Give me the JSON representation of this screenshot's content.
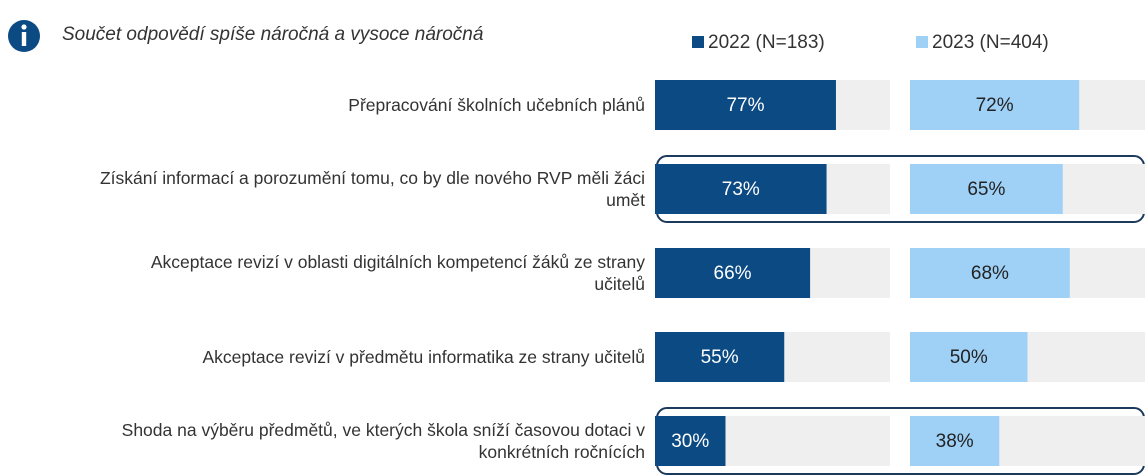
{
  "chart_data": {
    "type": "bar",
    "orientation": "horizontal",
    "title": "Součet odpovědí  spíše náročná  a vysoce náročná",
    "categories": [
      "Přepracování školních učebních plánů",
      "Získání informací a porozumění tomu, co by dle nového RVP měli žáci umět",
      "Akceptace revizí v oblasti digitálních kompetencí žáků ze strany učitelů",
      "Akceptace revizí v předmětu informatika ze strany učitelů",
      "Shoda na výběru předmětů, ve kterých škola sníží časovou dotaci v konkrétních ročnících"
    ],
    "series": [
      {
        "name": "2022 (N=183)",
        "color": "#0b4a82",
        "label_color": "#ffffff",
        "values": [
          77,
          73,
          66,
          55,
          30
        ],
        "value_labels": [
          "77%",
          "73%",
          "66%",
          "55%",
          "30%"
        ]
      },
      {
        "name": "2023 (N=404)",
        "color": "#9fd1f7",
        "label_color": "#222222",
        "values": [
          72,
          65,
          68,
          50,
          38
        ],
        "value_labels": [
          "72%",
          "65%",
          "68%",
          "50%",
          "38%"
        ]
      }
    ],
    "xlim": [
      0,
      100
    ],
    "track_color": "#efefef",
    "highlight_color": "#1b3a5c"
  }
}
